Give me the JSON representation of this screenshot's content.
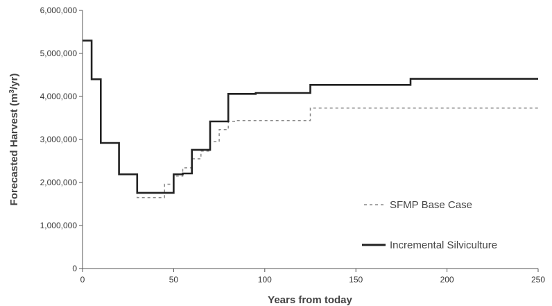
{
  "chart_data": {
    "type": "line",
    "xlabel": "Years from today",
    "ylabel_main": "Forecasted Harvest (m",
    "ylabel_sup": "3",
    "ylabel_end": "/yr)",
    "xlim": [
      0,
      250
    ],
    "ylim": [
      0,
      6000000
    ],
    "x_ticks": [
      0,
      50,
      100,
      150,
      200,
      250
    ],
    "x_tick_labels": [
      "0",
      "50",
      "100",
      "150",
      "200",
      "250"
    ],
    "y_ticks": [
      0,
      1000000,
      2000000,
      3000000,
      4000000,
      5000000,
      6000000
    ],
    "y_tick_labels": [
      "0",
      "1,000,000",
      "2,000,000",
      "3,000,000",
      "4,000,000",
      "5,000,000",
      "6,000,000"
    ],
    "grid": false,
    "legend_position": "bottom-right",
    "series": [
      {
        "name": "SFMP Base Case",
        "style": "dashed",
        "color": "#888888",
        "x": [
          0,
          5,
          10,
          20,
          30,
          45,
          50,
          55,
          60,
          65,
          70,
          75,
          80,
          85,
          125,
          250
        ],
        "y": [
          5300000,
          4400000,
          2920000,
          2190000,
          1650000,
          1960000,
          2150000,
          2340000,
          2550000,
          2730000,
          2950000,
          3230000,
          3420000,
          3440000,
          3730000,
          3730000
        ]
      },
      {
        "name": "Incremental Silviculture",
        "style": "solid",
        "color": "#222222",
        "x": [
          0,
          5,
          10,
          20,
          30,
          50,
          55,
          60,
          70,
          80,
          85,
          95,
          125,
          180,
          250
        ],
        "y": [
          5300000,
          4400000,
          2920000,
          2190000,
          1760000,
          2190000,
          2210000,
          2760000,
          3420000,
          4060000,
          4060000,
          4080000,
          4270000,
          4410000,
          4410000
        ]
      }
    ]
  }
}
